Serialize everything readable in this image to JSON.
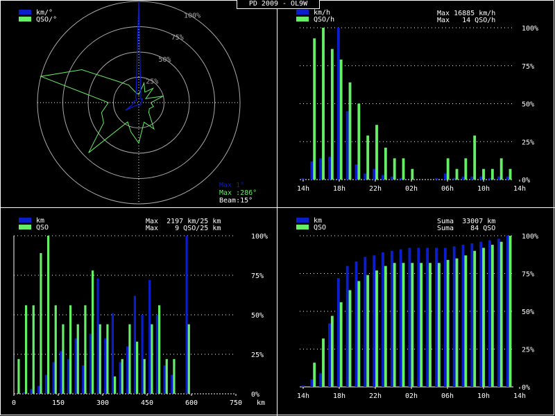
{
  "title": "PD 2009 - OL9W",
  "colors": {
    "blue": "#0a1ecc",
    "green": "#66ee66",
    "grid": "#cfcfcf",
    "text": "#ffffff"
  },
  "chart_data": [
    {
      "type": "polar",
      "legend": [
        {
          "label": "km/°",
          "color": "#0a1ecc"
        },
        {
          "label": "QSO/°",
          "color": "#66ee66"
        }
      ],
      "ring_labels": [
        "25%",
        "50%",
        "75%",
        "100%"
      ],
      "info": {
        "max_km": "Max 1°",
        "max_qso": "Max :286°",
        "beam": "Beam:15°"
      },
      "directions_deg": [
        0,
        15,
        30,
        45,
        60,
        75,
        90,
        105,
        120,
        135,
        150,
        165,
        180,
        195,
        210,
        225,
        240,
        255,
        270,
        285,
        300,
        315,
        330,
        345
      ],
      "km": [
        100,
        8,
        4,
        5,
        3,
        3,
        2,
        2,
        3,
        3,
        3,
        2,
        3,
        2,
        3,
        4,
        15,
        6,
        5,
        5,
        4,
        3,
        6,
        10
      ],
      "qso": [
        8,
        20,
        12,
        20,
        8,
        25,
        12,
        15,
        12,
        14,
        30,
        20,
        40,
        30,
        22,
        70,
        40,
        38,
        30,
        100,
        65,
        30,
        20,
        10
      ]
    },
    {
      "type": "bar",
      "legend": [
        {
          "label": "km/h",
          "color": "#0a1ecc"
        },
        {
          "label": "QSO/h",
          "color": "#66ee66"
        }
      ],
      "info": [
        "Max 16885 km/h",
        "Max   14 QSO/h"
      ],
      "x_tick_labels": [
        "14h",
        "18h",
        "22h",
        "02h",
        "06h",
        "10h",
        "14h"
      ],
      "y_tick_labels": [
        "0%",
        "25%",
        "50%",
        "75%",
        "100%"
      ],
      "categories": [
        "14",
        "15",
        "16",
        "17",
        "18",
        "19",
        "20",
        "21",
        "22",
        "23",
        "00",
        "01",
        "02",
        "03",
        "04",
        "05",
        "06",
        "07",
        "08",
        "09",
        "10",
        "11",
        "12",
        "13"
      ],
      "series": [
        {
          "name": "km/h",
          "values": [
            1,
            12,
            14,
            15,
            100,
            45,
            10,
            4,
            7,
            3,
            2,
            1,
            0,
            0,
            0,
            1,
            4,
            1,
            2,
            2,
            2,
            1,
            2,
            2
          ]
        },
        {
          "name": "QSO/h",
          "values": [
            0,
            93,
            100,
            86,
            79,
            64,
            50,
            29,
            36,
            21,
            14,
            14,
            7,
            0,
            0,
            0,
            14,
            7,
            14,
            29,
            7,
            7,
            14,
            7
          ]
        }
      ],
      "ylim": [
        0,
        100
      ]
    },
    {
      "type": "bar",
      "legend": [
        {
          "label": "km",
          "color": "#0a1ecc"
        },
        {
          "label": "QSO",
          "color": "#66ee66"
        }
      ],
      "info": [
        "Max  2197 km/25 km",
        "Max    9 QSO/25 km"
      ],
      "x_tick_labels": [
        "0",
        "150",
        "300",
        "450",
        "600",
        "750"
      ],
      "x_unit": "km",
      "y_tick_labels": [
        "0%",
        "25%",
        "50%",
        "75%",
        "100%"
      ],
      "xlim": [
        0,
        750
      ],
      "bin_width_km": 25,
      "series": [
        {
          "name": "km",
          "values": [
            0,
            1,
            3,
            5,
            12,
            20,
            27,
            22,
            35,
            18,
            38,
            73,
            35,
            51,
            20,
            30,
            62,
            50,
            72,
            50,
            18,
            12,
            0,
            100,
            0,
            0,
            0,
            0,
            0,
            0
          ]
        },
        {
          "name": "QSO",
          "values": [
            22,
            56,
            56,
            89,
            100,
            56,
            44,
            56,
            44,
            56,
            78,
            44,
            44,
            11,
            22,
            44,
            33,
            22,
            44,
            56,
            22,
            22,
            0,
            44,
            0,
            0,
            0,
            0,
            0,
            0
          ]
        }
      ],
      "ylim": [
        0,
        100
      ]
    },
    {
      "type": "bar",
      "legend": [
        {
          "label": "km",
          "color": "#0a1ecc"
        },
        {
          "label": "QSO",
          "color": "#66ee66"
        }
      ],
      "info": [
        "Suma  33007 km",
        "Suma    84 QSO"
      ],
      "x_tick_labels": [
        "14h",
        "18h",
        "22h",
        "02h",
        "06h",
        "10h",
        "14h"
      ],
      "y_tick_labels": [
        "0%",
        "25%",
        "50%",
        "75%",
        "100%"
      ],
      "categories": [
        "14",
        "15",
        "16",
        "17",
        "18",
        "19",
        "20",
        "21",
        "22",
        "23",
        "00",
        "01",
        "02",
        "03",
        "04",
        "05",
        "06",
        "07",
        "08",
        "09",
        "10",
        "11",
        "12",
        "13"
      ],
      "series": [
        {
          "name": "km",
          "values": [
            1,
            5,
            9,
            42,
            72,
            80,
            83,
            86,
            87,
            89,
            90,
            91,
            92,
            92,
            92,
            92,
            92,
            93,
            94,
            95,
            96,
            97,
            98,
            100
          ]
        },
        {
          "name": "QSO",
          "values": [
            0,
            16,
            32,
            47,
            56,
            64,
            70,
            74,
            77,
            80,
            82,
            82,
            82,
            82,
            82,
            82,
            84,
            85,
            87,
            90,
            92,
            94,
            96,
            100
          ]
        }
      ],
      "ylim": [
        0,
        100
      ]
    }
  ]
}
